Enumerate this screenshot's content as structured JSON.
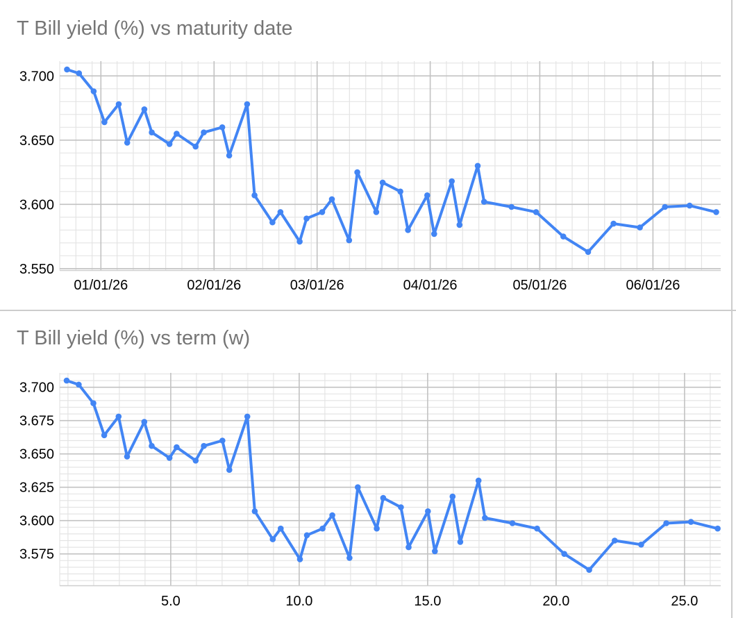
{
  "colors": {
    "line": "#4285f4",
    "marker": "#4285f4",
    "title_text": "#757575",
    "tick_label_text": "#000000",
    "grid_minor": "#e4e4e4",
    "grid_major": "#c2c2c2",
    "axis_line": "#cfcfcf",
    "frame_border": "#cccccc",
    "background": "#ffffff"
  },
  "chart_data": [
    {
      "type": "line",
      "title": "T Bill yield (%) vs maturity date",
      "x_axis": "maturity date",
      "x_tick_labels": [
        "01/01/26",
        "02/01/26",
        "03/01/26",
        "04/01/26",
        "05/01/26",
        "06/01/26"
      ],
      "y_tick_labels": [
        "3.700",
        "3.650",
        "3.600",
        "3.550"
      ],
      "y_tick_values": [
        3.7,
        3.65,
        3.6,
        3.55
      ],
      "ylim": [
        3.548,
        3.712
      ],
      "grid": "minor+major",
      "legend": "none",
      "line_color": "#4285f4",
      "series": [
        {
          "name": "T Bill yield (%)",
          "x_weeks": [
            0.95,
            1.42,
            1.99,
            2.41,
            2.97,
            3.3,
            3.97,
            4.26,
            4.95,
            5.23,
            5.97,
            6.29,
            7.01,
            7.28,
            7.98,
            8.27,
            8.97,
            9.28,
            10.03,
            10.3,
            10.91,
            11.29,
            11.96,
            12.28,
            13.02,
            13.27,
            13.96,
            14.26,
            15.01,
            15.28,
            15.97,
            16.27,
            16.98,
            17.23,
            18.3,
            19.26,
            20.32,
            21.29,
            22.28,
            23.31,
            24.29,
            25.25,
            26.29
          ],
          "y": [
            3.705,
            3.702,
            3.688,
            3.664,
            3.678,
            3.648,
            3.674,
            3.656,
            3.647,
            3.655,
            3.645,
            3.656,
            3.66,
            3.638,
            3.678,
            3.607,
            3.586,
            3.594,
            3.571,
            3.589,
            3.594,
            3.604,
            3.572,
            3.625,
            3.594,
            3.617,
            3.61,
            3.58,
            3.607,
            3.577,
            3.618,
            3.584,
            3.63,
            3.602,
            3.598,
            3.594,
            3.575,
            3.563,
            3.585,
            3.582,
            3.598,
            3.599,
            3.594
          ]
        }
      ]
    },
    {
      "type": "line",
      "title": "T Bill yield (%) vs term (w)",
      "x_axis": "term (w)",
      "x_tick_labels": [
        "5.0",
        "10.0",
        "15.0",
        "20.0",
        "25.0"
      ],
      "x_tick_values": [
        5,
        10,
        15,
        20,
        25
      ],
      "y_tick_labels": [
        "3.700",
        "3.675",
        "3.650",
        "3.625",
        "3.600",
        "3.575"
      ],
      "y_tick_values": [
        3.7,
        3.675,
        3.65,
        3.625,
        3.6,
        3.575
      ],
      "ylim": [
        3.551,
        3.711
      ],
      "grid": "minor+major",
      "legend": "none",
      "line_color": "#4285f4",
      "series": [
        {
          "name": "T Bill yield (%)",
          "x_weeks": [
            0.95,
            1.42,
            1.99,
            2.41,
            2.97,
            3.3,
            3.97,
            4.26,
            4.95,
            5.23,
            5.97,
            6.29,
            7.01,
            7.28,
            7.98,
            8.27,
            8.97,
            9.28,
            10.03,
            10.3,
            10.91,
            11.29,
            11.96,
            12.28,
            13.02,
            13.27,
            13.96,
            14.26,
            15.01,
            15.28,
            15.97,
            16.27,
            16.98,
            17.23,
            18.3,
            19.26,
            20.32,
            21.29,
            22.28,
            23.31,
            24.29,
            25.25,
            26.29
          ],
          "y": [
            3.705,
            3.702,
            3.688,
            3.664,
            3.678,
            3.648,
            3.674,
            3.656,
            3.647,
            3.655,
            3.645,
            3.656,
            3.66,
            3.638,
            3.678,
            3.607,
            3.586,
            3.594,
            3.571,
            3.589,
            3.594,
            3.604,
            3.572,
            3.625,
            3.594,
            3.617,
            3.61,
            3.58,
            3.607,
            3.577,
            3.618,
            3.584,
            3.63,
            3.602,
            3.598,
            3.594,
            3.575,
            3.563,
            3.585,
            3.582,
            3.598,
            3.599,
            3.594
          ]
        }
      ]
    }
  ]
}
